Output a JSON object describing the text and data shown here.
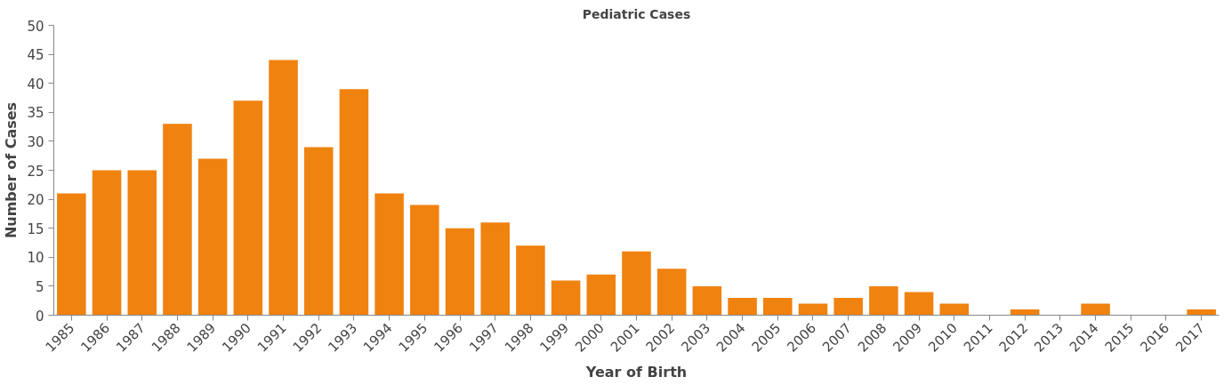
{
  "chart_data": {
    "type": "bar",
    "title": "Pediatric Cases",
    "xlabel": "Year of Birth",
    "ylabel": "Number of Cases",
    "categories": [
      "1985",
      "1986",
      "1987",
      "1988",
      "1989",
      "1990",
      "1991",
      "1992",
      "1993",
      "1994",
      "1995",
      "1996",
      "1997",
      "1998",
      "1999",
      "2000",
      "2001",
      "2002",
      "2003",
      "2004",
      "2005",
      "2006",
      "2007",
      "2008",
      "2009",
      "2010",
      "2011",
      "2012",
      "2013",
      "2014",
      "2015",
      "2016",
      "2017"
    ],
    "values": [
      21,
      25,
      25,
      33,
      27,
      37,
      44,
      29,
      39,
      21,
      19,
      15,
      16,
      12,
      6,
      7,
      11,
      8,
      5,
      3,
      3,
      2,
      3,
      5,
      4,
      2,
      0,
      1,
      0,
      2,
      0,
      0,
      1
    ],
    "color": "#f0820f",
    "ylim": [
      0,
      50
    ],
    "yticks": [
      0,
      5,
      10,
      15,
      20,
      25,
      30,
      35,
      40,
      45,
      50
    ],
    "grid": false
  }
}
